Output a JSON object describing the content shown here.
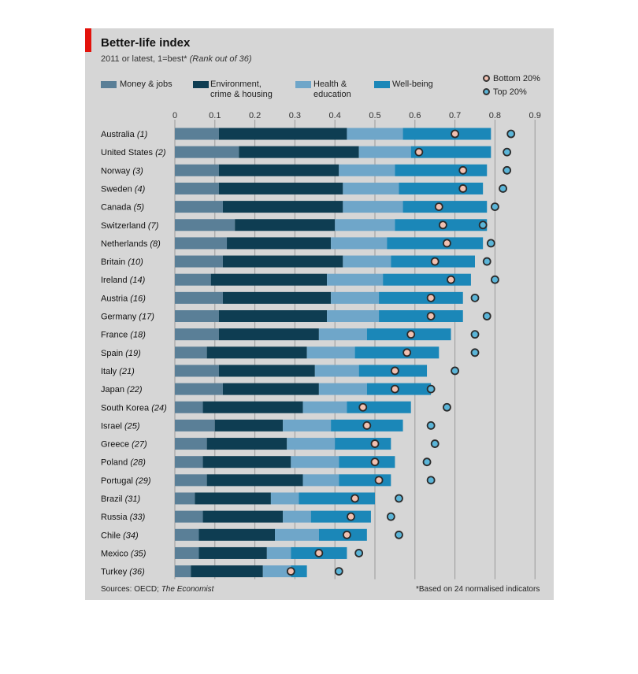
{
  "title": "Better-life index",
  "subtitle_main": "2011 or latest, 1=best*",
  "subtitle_rank": "(Rank out of 36)",
  "legend": {
    "money": "Money & jobs",
    "environment_line1": "Environment,",
    "environment_line2": "crime & housing",
    "health_line1": "Health &",
    "health_line2": "education",
    "wellbeing": "Well-being",
    "bottom": "Bottom 20%",
    "top": "Top 20%"
  },
  "footer": {
    "sources_label": "Sources: OECD; ",
    "sources_italic": "The Economist",
    "note": "*Based on 24 normalised indicators"
  },
  "colors": {
    "money": "#5a7f97",
    "environment": "#0e3d52",
    "health": "#6fa6c9",
    "wellbeing": "#1b87b8",
    "bottom_dot": "#f2c0b0",
    "top_dot": "#5bb5d8",
    "panel": "#d6d6d6"
  },
  "chart_data": {
    "type": "bar",
    "orientation": "horizontal-stacked",
    "x_ticks": [
      "0",
      "0.1",
      "0.2",
      "0.3",
      "0.4",
      "0.5",
      "0.6",
      "0.7",
      "0.8",
      "0.9"
    ],
    "xlim": [
      0,
      0.9
    ],
    "grid": true,
    "categories": [
      {
        "name": "Australia",
        "rank": "(1)"
      },
      {
        "name": "United States",
        "rank": "(2)"
      },
      {
        "name": "Norway",
        "rank": "(3)"
      },
      {
        "name": "Sweden",
        "rank": "(4)"
      },
      {
        "name": "Canada",
        "rank": "(5)"
      },
      {
        "name": "Switzerland",
        "rank": "(7)"
      },
      {
        "name": "Netherlands",
        "rank": "(8)"
      },
      {
        "name": "Britain",
        "rank": "(10)"
      },
      {
        "name": "Ireland",
        "rank": "(14)"
      },
      {
        "name": "Austria",
        "rank": "(16)"
      },
      {
        "name": "Germany",
        "rank": "(17)"
      },
      {
        "name": "France",
        "rank": "(18)"
      },
      {
        "name": "Spain",
        "rank": "(19)"
      },
      {
        "name": "Italy",
        "rank": "(21)"
      },
      {
        "name": "Japan",
        "rank": "(22)"
      },
      {
        "name": "South Korea",
        "rank": "(24)"
      },
      {
        "name": "Israel",
        "rank": "(25)"
      },
      {
        "name": "Greece",
        "rank": "(27)"
      },
      {
        "name": "Poland",
        "rank": "(28)"
      },
      {
        "name": "Portugal",
        "rank": "(29)"
      },
      {
        "name": "Brazil",
        "rank": "(31)"
      },
      {
        "name": "Russia",
        "rank": "(33)"
      },
      {
        "name": "Chile",
        "rank": "(34)"
      },
      {
        "name": "Mexico",
        "rank": "(35)"
      },
      {
        "name": "Turkey",
        "rank": "(36)"
      }
    ],
    "series": [
      {
        "name": "Money & jobs",
        "values": [
          0.11,
          0.16,
          0.11,
          0.11,
          0.12,
          0.15,
          0.13,
          0.12,
          0.09,
          0.12,
          0.11,
          0.11,
          0.08,
          0.11,
          0.12,
          0.07,
          0.1,
          0.08,
          0.07,
          0.08,
          0.05,
          0.07,
          0.06,
          0.06,
          0.04
        ]
      },
      {
        "name": "Environment, crime & housing",
        "values": [
          0.32,
          0.3,
          0.3,
          0.31,
          0.3,
          0.25,
          0.26,
          0.3,
          0.29,
          0.27,
          0.27,
          0.25,
          0.25,
          0.24,
          0.24,
          0.25,
          0.17,
          0.2,
          0.22,
          0.24,
          0.19,
          0.2,
          0.19,
          0.17,
          0.18
        ]
      },
      {
        "name": "Health & education",
        "values": [
          0.14,
          0.13,
          0.14,
          0.14,
          0.15,
          0.15,
          0.14,
          0.12,
          0.14,
          0.12,
          0.13,
          0.12,
          0.12,
          0.11,
          0.12,
          0.11,
          0.12,
          0.12,
          0.12,
          0.09,
          0.07,
          0.07,
          0.11,
          0.06,
          0.07
        ]
      },
      {
        "name": "Well-being",
        "values": [
          0.22,
          0.2,
          0.23,
          0.21,
          0.21,
          0.23,
          0.24,
          0.21,
          0.22,
          0.21,
          0.21,
          0.21,
          0.21,
          0.17,
          0.16,
          0.16,
          0.18,
          0.14,
          0.14,
          0.13,
          0.19,
          0.15,
          0.12,
          0.14,
          0.04
        ]
      }
    ],
    "bottom_20": [
      0.7,
      0.61,
      0.72,
      0.72,
      0.66,
      0.67,
      0.68,
      0.65,
      0.69,
      0.64,
      0.64,
      0.59,
      0.58,
      0.55,
      0.55,
      0.47,
      0.48,
      0.5,
      0.5,
      0.51,
      0.45,
      0.44,
      0.43,
      0.36,
      0.29
    ],
    "top_20": [
      0.84,
      0.83,
      0.83,
      0.82,
      0.8,
      0.77,
      0.79,
      0.78,
      0.8,
      0.75,
      0.78,
      0.75,
      0.75,
      0.7,
      0.64,
      0.68,
      0.64,
      0.65,
      0.63,
      0.64,
      0.56,
      0.54,
      0.56,
      0.46,
      0.41
    ]
  }
}
